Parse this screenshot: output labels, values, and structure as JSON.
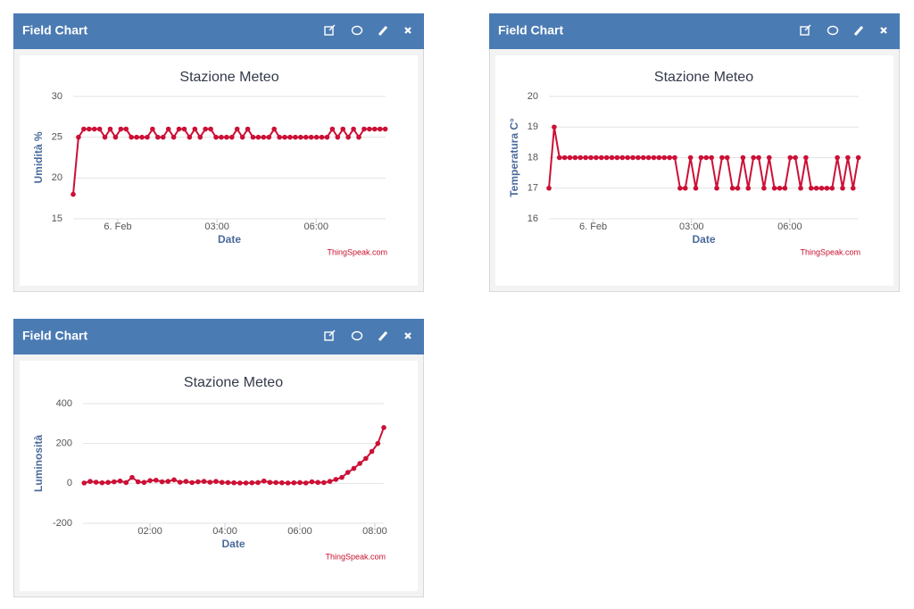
{
  "panels": [
    {
      "header": "Field Chart",
      "credit": "ThingSpeak.com"
    },
    {
      "header": "Field Chart",
      "credit": "ThingSpeak.com"
    },
    {
      "header": "Field Chart",
      "credit": "ThingSpeak.com"
    }
  ],
  "chart_data": [
    {
      "type": "line",
      "title": "Stazione Meteo",
      "xlabel": "Date",
      "ylabel": "Umidità %",
      "color": "#cc1036",
      "grid": true,
      "xlim": [
        -1.35,
        8.1
      ],
      "xticks": [
        {
          "value": 0,
          "label": "6. Feb"
        },
        {
          "value": 3,
          "label": "03:00"
        },
        {
          "value": 6,
          "label": "06:00"
        }
      ],
      "ylim": [
        15,
        30
      ],
      "yticks": [
        15,
        20,
        25,
        30
      ],
      "x": [
        -1.35,
        -1.19,
        -1.03,
        -0.87,
        -0.71,
        -0.55,
        -0.39,
        -0.23,
        -0.07,
        0.09,
        0.25,
        0.41,
        0.57,
        0.73,
        0.89,
        1.05,
        1.21,
        1.37,
        1.53,
        1.69,
        1.85,
        2.01,
        2.17,
        2.33,
        2.49,
        2.65,
        2.81,
        2.97,
        3.13,
        3.29,
        3.45,
        3.61,
        3.77,
        3.93,
        4.09,
        4.25,
        4.41,
        4.57,
        4.73,
        4.89,
        5.05,
        5.21,
        5.37,
        5.53,
        5.69,
        5.85,
        6.01,
        6.17,
        6.33,
        6.49,
        6.65,
        6.81,
        6.97,
        7.13,
        7.29,
        7.45,
        7.61,
        7.77,
        7.93,
        8.09
      ],
      "values": [
        18,
        25,
        26,
        26,
        26,
        26,
        25,
        26,
        25,
        26,
        26,
        25,
        25,
        25,
        25,
        26,
        25,
        25,
        26,
        25,
        26,
        26,
        25,
        26,
        25,
        26,
        26,
        25,
        25,
        25,
        25,
        26,
        25,
        26,
        25,
        25,
        25,
        25,
        26,
        25,
        25,
        25,
        25,
        25,
        25,
        25,
        25,
        25,
        25,
        26,
        25,
        26,
        25,
        26,
        25,
        26,
        26,
        26,
        26,
        26
      ]
    },
    {
      "type": "line",
      "title": "Stazione Meteo",
      "xlabel": "Date",
      "ylabel": "Temperatura C°",
      "color": "#cc1036",
      "grid": true,
      "xlim": [
        -1.35,
        8.1
      ],
      "xticks": [
        {
          "value": 0,
          "label": "6. Feb"
        },
        {
          "value": 3,
          "label": "03:00"
        },
        {
          "value": 6,
          "label": "06:00"
        }
      ],
      "ylim": [
        16,
        20
      ],
      "yticks": [
        16,
        17,
        18,
        19,
        20
      ],
      "x": [
        -1.35,
        -1.19,
        -1.03,
        -0.87,
        -0.71,
        -0.55,
        -0.39,
        -0.23,
        -0.07,
        0.09,
        0.25,
        0.41,
        0.57,
        0.73,
        0.89,
        1.05,
        1.21,
        1.37,
        1.53,
        1.69,
        1.85,
        2.01,
        2.17,
        2.33,
        2.49,
        2.65,
        2.81,
        2.97,
        3.13,
        3.29,
        3.45,
        3.61,
        3.77,
        3.93,
        4.09,
        4.25,
        4.41,
        4.57,
        4.73,
        4.89,
        5.05,
        5.21,
        5.37,
        5.53,
        5.69,
        5.85,
        6.01,
        6.17,
        6.33,
        6.49,
        6.65,
        6.81,
        6.97,
        7.13,
        7.29,
        7.45,
        7.61,
        7.77,
        7.93,
        8.09
      ],
      "values": [
        17,
        19,
        18,
        18,
        18,
        18,
        18,
        18,
        18,
        18,
        18,
        18,
        18,
        18,
        18,
        18,
        18,
        18,
        18,
        18,
        18,
        18,
        18,
        18,
        18,
        17,
        17,
        18,
        17,
        18,
        18,
        18,
        17,
        18,
        18,
        17,
        17,
        18,
        17,
        18,
        18,
        17,
        18,
        17,
        17,
        17,
        18,
        18,
        17,
        18,
        17,
        17,
        17,
        17,
        17,
        18,
        17,
        18,
        17,
        18
      ]
    },
    {
      "type": "line",
      "title": "Stazione Meteo",
      "xlabel": "Date",
      "ylabel": "Luminosità",
      "color": "#cc1036",
      "grid": true,
      "xlim": [
        0.21,
        8.24
      ],
      "xticks": [
        {
          "value": 2,
          "label": "02:00"
        },
        {
          "value": 4,
          "label": "04:00"
        },
        {
          "value": 6,
          "label": "06:00"
        },
        {
          "value": 8,
          "label": "08:00"
        }
      ],
      "ylim": [
        -200,
        400
      ],
      "yticks": [
        -200,
        0,
        200,
        400
      ],
      "x": [
        0.24,
        0.4,
        0.56,
        0.72,
        0.88,
        1.04,
        1.2,
        1.36,
        1.52,
        1.68,
        1.84,
        2.0,
        2.16,
        2.32,
        2.48,
        2.64,
        2.8,
        2.96,
        3.12,
        3.28,
        3.44,
        3.6,
        3.76,
        3.92,
        4.08,
        4.24,
        4.4,
        4.56,
        4.72,
        4.88,
        5.04,
        5.2,
        5.36,
        5.52,
        5.68,
        5.84,
        6.0,
        6.16,
        6.32,
        6.48,
        6.64,
        6.8,
        6.96,
        7.12,
        7.28,
        7.44,
        7.6,
        7.76,
        7.92,
        8.08,
        8.24
      ],
      "values": [
        2,
        10,
        6,
        3,
        5,
        8,
        12,
        4,
        30,
        8,
        5,
        14,
        16,
        8,
        10,
        18,
        6,
        10,
        4,
        8,
        10,
        6,
        10,
        5,
        4,
        3,
        2,
        2,
        3,
        4,
        12,
        5,
        4,
        3,
        2,
        3,
        4,
        2,
        8,
        5,
        4,
        10,
        20,
        30,
        55,
        75,
        100,
        125,
        160,
        200,
        280
      ]
    }
  ]
}
